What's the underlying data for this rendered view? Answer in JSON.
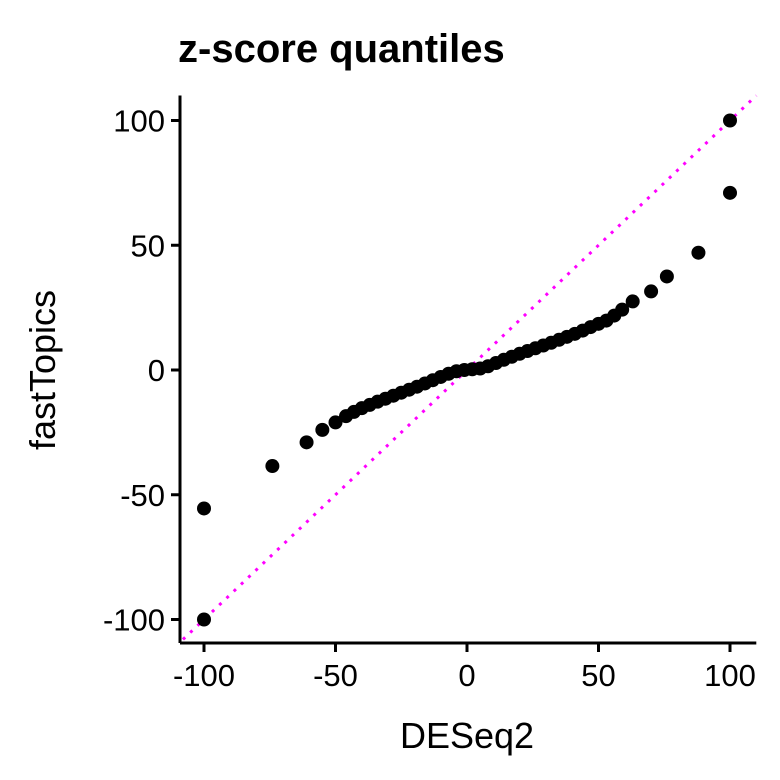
{
  "chart_data": {
    "type": "scatter",
    "title": "z-score quantiles",
    "xlabel": "DESeq2",
    "ylabel": "fastTopics",
    "xlim": [
      -108,
      110
    ],
    "ylim": [
      -110,
      110
    ],
    "x_ticks": [
      -100,
      -50,
      0,
      50,
      100
    ],
    "x_tick_labels": [
      "-100",
      "-50",
      "0",
      "50",
      "100"
    ],
    "y_ticks": [
      -100,
      -50,
      0,
      50,
      100
    ],
    "y_tick_labels": [
      "-100",
      "-50",
      "0",
      "50",
      "100"
    ],
    "grid": false,
    "point_color": "#000000",
    "reference_line": {
      "slope": 1,
      "intercept": 0,
      "color": "#ff00ff",
      "style": "dotted"
    },
    "points": [
      [
        -100,
        -100
      ],
      [
        -100,
        -55.5
      ],
      [
        -74,
        -38.5
      ],
      [
        -61,
        -29
      ],
      [
        -55,
        -24
      ],
      [
        -50,
        -21
      ],
      [
        -46,
        -18.5
      ],
      [
        -43,
        -16.8
      ],
      [
        -40,
        -15.3
      ],
      [
        -37,
        -14
      ],
      [
        -34,
        -12.7
      ],
      [
        -31,
        -11.5
      ],
      [
        -28,
        -10.3
      ],
      [
        -25,
        -9.1
      ],
      [
        -22,
        -7.9
      ],
      [
        -19,
        -6.7
      ],
      [
        -16,
        -5.4
      ],
      [
        -13,
        -4.1
      ],
      [
        -10,
        -2.8
      ],
      [
        -7,
        -1.5
      ],
      [
        -4,
        -0.5
      ],
      [
        -1,
        0
      ],
      [
        2,
        0.3
      ],
      [
        5,
        0.6
      ],
      [
        8,
        1.5
      ],
      [
        11,
        2.8
      ],
      [
        14,
        4.1
      ],
      [
        17,
        5.3
      ],
      [
        20,
        6.5
      ],
      [
        23,
        7.6
      ],
      [
        26,
        8.7
      ],
      [
        29,
        9.8
      ],
      [
        32,
        10.9
      ],
      [
        35,
        12.1
      ],
      [
        38,
        13.3
      ],
      [
        41,
        14.5
      ],
      [
        44,
        15.8
      ],
      [
        47,
        17.2
      ],
      [
        50,
        18.5
      ],
      [
        53,
        19.8
      ],
      [
        56,
        21.8
      ],
      [
        59,
        24.2
      ],
      [
        63,
        27.5
      ],
      [
        70,
        31.5
      ],
      [
        76,
        37.5
      ],
      [
        88,
        47
      ],
      [
        100,
        71
      ],
      [
        100,
        100
      ]
    ]
  }
}
